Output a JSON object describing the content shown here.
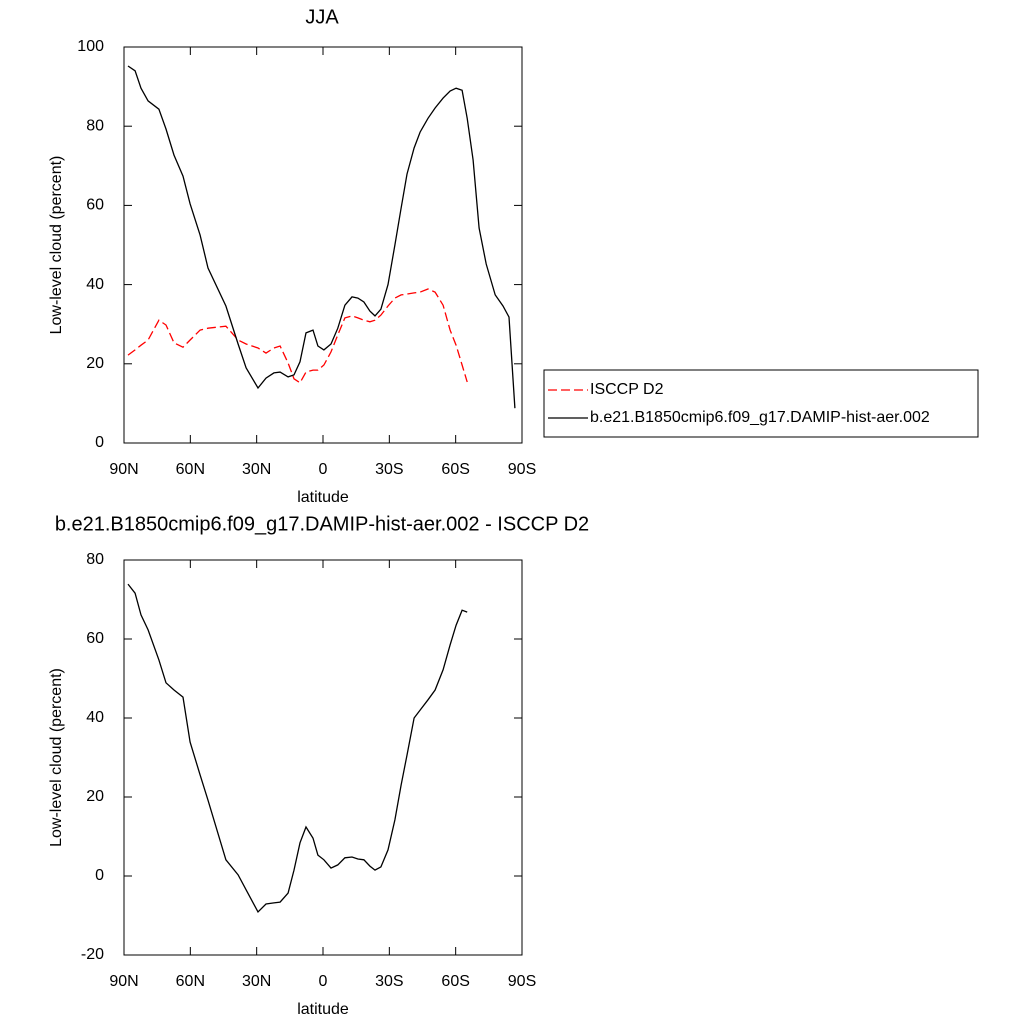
{
  "chart_data": [
    {
      "type": "line",
      "title": "JJA",
      "xlabel": "latitude",
      "ylabel": "Low-level cloud (percent)",
      "x": [
        88.2,
        85.0,
        82.3,
        79.1,
        74.2,
        71.0,
        67.4,
        63.3,
        60.1,
        55.6,
        52.0,
        43.9,
        38.4,
        34.8,
        29.4,
        25.8,
        22.2,
        19.4,
        15.8,
        13.1,
        10.4,
        7.7,
        4.5,
        2.3,
        -0.4,
        -3.6,
        -6.7,
        -9.9,
        -13.1,
        -15.8,
        -18.5,
        -21.2,
        -23.5,
        -26.2,
        -29.4,
        -32.5,
        -35.3,
        -38.0,
        -41.2,
        -43.9,
        -47.5,
        -50.7,
        -54.3,
        -57.5,
        -60.2,
        -62.9,
        -65.2,
        -67.9,
        -70.6,
        -73.8,
        -77.9,
        -81.4,
        -84.1,
        -86.8
      ],
      "series": [
        {
          "name": "ISCCP D2",
          "color": "#ff0000",
          "line_style": "dashed",
          "values": [
            22.2,
            23.5,
            24.7,
            26,
            31,
            29.8,
            25.3,
            24.2,
            26,
            28.5,
            29,
            29.5,
            26,
            25,
            24,
            22.7,
            24,
            24.5,
            20.2,
            16.2,
            15.2,
            17.9,
            18.4,
            18.4,
            19.7,
            23,
            27.3,
            31.6,
            32.1,
            31.6,
            31,
            30.6,
            31,
            32.3,
            34.6,
            36.6,
            37.4,
            37.6,
            37.9,
            38.1,
            38.9,
            38.1,
            34.8,
            28.5,
            24.7,
            19.7,
            15.4,
            null,
            null,
            null,
            null,
            null,
            null,
            null
          ]
        },
        {
          "name": "b.e21.B1850cmip6.f09_g17.DAMIP-hist-aer.002",
          "color": "#000000",
          "line_style": "solid",
          "values": [
            95.2,
            94,
            89.6,
            86.4,
            84.3,
            79.3,
            72.7,
            67.4,
            60.4,
            52.5,
            44.2,
            34.6,
            25,
            19,
            13.9,
            16.4,
            17.7,
            17.9,
            16.7,
            17.2,
            20.5,
            27.8,
            28.5,
            24.5,
            23.5,
            25,
            29,
            34.8,
            36.9,
            36.6,
            35.6,
            33.3,
            32.1,
            33.8,
            40,
            50,
            59.3,
            67.9,
            74.5,
            78.5,
            82,
            84.6,
            87.1,
            88.9,
            89.6,
            89.1,
            82,
            71.5,
            54.3,
            45.2,
            37.4,
            34.6,
            31.8,
            8.8
          ]
        }
      ],
      "xlim": [
        90,
        -90
      ],
      "xticks": [
        {
          "value": 90,
          "label": "90N"
        },
        {
          "value": 60,
          "label": "60N"
        },
        {
          "value": 30,
          "label": "30N"
        },
        0,
        {
          "value": -30,
          "label": "30S"
        },
        {
          "value": -60,
          "label": "60S"
        },
        {
          "value": -90,
          "label": "90S"
        }
      ],
      "ylim": [
        0,
        100
      ],
      "yticks": [
        0,
        20,
        40,
        60,
        80,
        100
      ],
      "legend": "right"
    },
    {
      "type": "line",
      "title": "b.e21.B1850cmip6.f09_g17.DAMIP-hist-aer.002 - ISCCP D2",
      "xlabel": "latitude",
      "ylabel": "Low-level cloud (percent)",
      "x": [
        88.2,
        85.0,
        82.3,
        79.1,
        74.2,
        71.0,
        67.4,
        63.3,
        60.1,
        55.6,
        52.0,
        43.9,
        38.4,
        34.8,
        29.4,
        25.8,
        22.2,
        19.4,
        15.8,
        13.1,
        10.4,
        7.7,
        4.5,
        2.3,
        -0.4,
        -3.6,
        -6.7,
        -9.9,
        -13.1,
        -15.8,
        -18.5,
        -21.2,
        -23.5,
        -26.2,
        -29.4,
        -32.5,
        -35.3,
        -38.0,
        -41.2,
        -43.9,
        -47.5,
        -50.7,
        -54.3,
        -57.5,
        -60.2,
        -62.9,
        -65.2
      ],
      "series": [
        {
          "color": "#000000",
          "line_style": "solid",
          "values": [
            73.9,
            71.6,
            66.1,
            62.3,
            54.7,
            48.9,
            47.1,
            45.3,
            33.9,
            25.6,
            19.2,
            4.1,
            0.3,
            -3.5,
            -9.1,
            -7.1,
            -6.8,
            -6.6,
            -4.3,
            1.5,
            8.4,
            12.4,
            9.6,
            5.3,
            4.1,
            2,
            2.8,
            4.6,
            4.8,
            4.3,
            4.1,
            2.5,
            1.5,
            2.3,
            6.6,
            14.2,
            23,
            30.6,
            40,
            42,
            44.6,
            47.1,
            52.2,
            58.5,
            63.5,
            67.3,
            66.8
          ]
        }
      ],
      "xlim": [
        90,
        -90
      ],
      "xticks": [
        {
          "value": 90,
          "label": "90N"
        },
        {
          "value": 60,
          "label": "60N"
        },
        {
          "value": 30,
          "label": "30N"
        },
        0,
        {
          "value": -30,
          "label": "30S"
        },
        {
          "value": -60,
          "label": "60S"
        },
        {
          "value": -90,
          "label": "90S"
        }
      ],
      "ylim": [
        -20,
        80
      ],
      "yticks": [
        -20,
        0,
        20,
        40,
        60,
        80
      ]
    }
  ]
}
